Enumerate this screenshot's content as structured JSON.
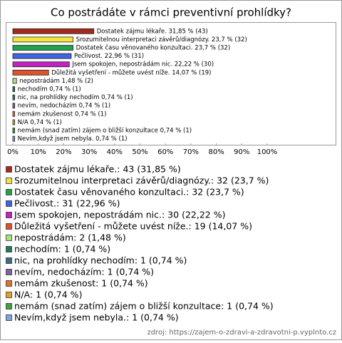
{
  "chart_data": {
    "type": "bar",
    "orientation": "horizontal",
    "title": "Co postrádáte v rámci preventivní prohlídky?",
    "categories": [
      "Dostatek zájmu lékaře.",
      "Srozumitelnou interpretaci závěrů/diagnózy.",
      "Dostatek času věnovaného konzultaci.",
      "Pečlivost.",
      "Jsem spokojen, nepostrádám nic.",
      "Důležitá vyšetření - můžete uvést níže.",
      "nepostrádám",
      "nechodím",
      "nic, na prohlídky nechodím",
      "nevím, nedocházím",
      "nemám zkušenost",
      "N/A",
      "nemám (snad zatím) zájem o bližší konzultace",
      "Nevím,když jsem nebyla."
    ],
    "values": [
      31.85,
      23.7,
      23.7,
      22.96,
      22.22,
      14.07,
      1.48,
      0.74,
      0.74,
      0.74,
      0.74,
      0.74,
      0.74,
      0.74
    ],
    "value_labels": [
      "Dostatek zájmu lékaře. 31,85 % (43)",
      "Srozumitelnou interpretaci závěrů/diagnózy. 23,7 % (32)",
      "Dostatek času věnovaného konzultaci. 23,7 % (32)",
      "Pečlivost. 22,96 % (31)",
      "Jsem spokojen, nepostrádám nic. 22,22 % (30)",
      "Důležitá vyšetření - můžete uvést níže. 14,07 % (19)",
      "nepostrádám 1,48 % (2)",
      "nechodím 0,74 % (1)",
      "nic, na prohlídky nechodím 0,74 % (1)",
      "nevím, nedocházím 0,74 % (1)",
      "nemám zkušenost 0,74 % (1)",
      "N/A 0,74 % (1)",
      "nemám (snad zatím) zájem o bližší konzultace 0,74 % (1)",
      "Nevím,když jsem nebyla. 0,74 % (1)"
    ],
    "legend_labels": [
      "Dostatek zájmu lékaře.: 43 (31,85 %)",
      "Srozumitelnou interpretaci závěrů/diagnózy.: 32 (23,7 %)",
      "Dostatek času věnovaného konzultaci.: 32 (23,7 %)",
      "Pečlivost.: 31 (22,96 %)",
      "Jsem spokojen, nepostrádám nic.: 30 (22,22 %)",
      "Důležitá vyšetření - můžete uvést níže.: 19 (14,07 %)",
      "nepostrádám: 2 (1,48 %)",
      "nechodím: 1 (0,74 %)",
      "nic, na prohlídky nechodím: 1 (0,74 %)",
      "nevím, nedocházím: 1 (0,74 %)",
      "nemám zkušenost: 1 (0,74 %)",
      "N/A: 1 (0,74 %)",
      "nemám (snad zatím) zájem o bližší konzultace: 1 (0,74 %)",
      "Nevím,když jsem nebyla.: 1 (0,74 %)"
    ],
    "colors": [
      "#a52a1e",
      "#f2e43c",
      "#22a24a",
      "#4262e2",
      "#c222c2",
      "#e0522a",
      "#a8e27e",
      "#227a5a",
      "#3e6e82",
      "#8262a2",
      "#e2722a",
      "#e2a22a",
      "#42a242",
      "#82a2e2"
    ],
    "xlim": [
      0,
      100
    ],
    "xticks": [
      {
        "value": 0,
        "label": "0%"
      },
      {
        "value": 10,
        "label": "10%"
      },
      {
        "value": 20,
        "label": "20%"
      },
      {
        "value": 30,
        "label": "30%"
      },
      {
        "value": 40,
        "label": "40%"
      },
      {
        "value": 50,
        "label": "50%"
      },
      {
        "value": 60,
        "label": "60%"
      },
      {
        "value": 70,
        "label": "70%"
      },
      {
        "value": 80,
        "label": "80%"
      },
      {
        "value": 90,
        "label": "90%"
      },
      {
        "value": 100,
        "label": "100%"
      }
    ],
    "source": "zdroj: https://zajem-o-zdravi-a-zdravotni-p.vyplnto.cz"
  }
}
